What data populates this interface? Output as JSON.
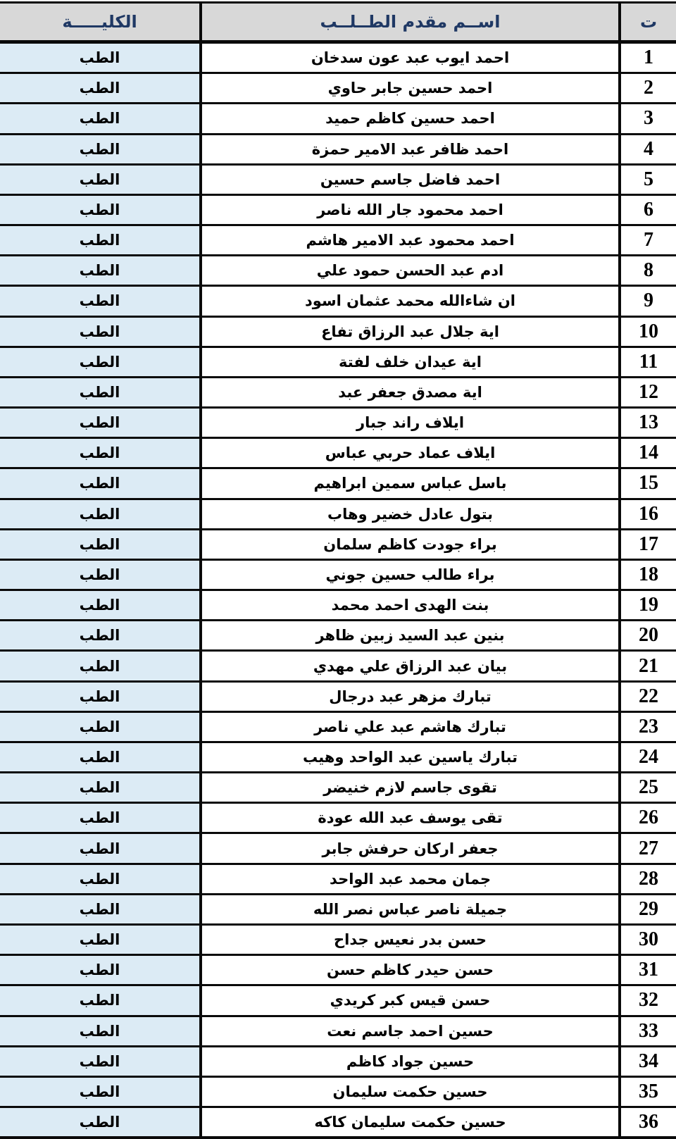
{
  "document_type": "applicants-list-table",
  "colors": {
    "header_background": "#d8d8d8",
    "header_text": "#1f3864",
    "college_cell_background": "#dcebf5",
    "body_text": "#000000",
    "border": "#0a0a0a",
    "name_cell_background": "#ffffff"
  },
  "table": {
    "headers": {
      "index": "ت",
      "name": "اســم مقدم الطــلــب",
      "college": "الكليـــــة"
    },
    "rows": [
      {
        "index": "1",
        "name": "احمد ايوب عبد عون سدخان",
        "college": "الطب"
      },
      {
        "index": "2",
        "name": "احمد حسين جابر حاوي",
        "college": "الطب"
      },
      {
        "index": "3",
        "name": "احمد حسين كاظم حميد",
        "college": "الطب"
      },
      {
        "index": "4",
        "name": "احمد ظافر عبد الامير حمزة",
        "college": "الطب"
      },
      {
        "index": "5",
        "name": "احمد فاضل جاسم حسين",
        "college": "الطب"
      },
      {
        "index": "6",
        "name": "احمد محمود جار الله ناصر",
        "college": "الطب"
      },
      {
        "index": "7",
        "name": "احمد محمود عبد الامير هاشم",
        "college": "الطب"
      },
      {
        "index": "8",
        "name": "ادم عبد الحسن حمود علي",
        "college": "الطب"
      },
      {
        "index": "9",
        "name": "ان شاءالله محمد عثمان اسود",
        "college": "الطب"
      },
      {
        "index": "10",
        "name": "اية جلال عبد الرزاق تفاع",
        "college": "الطب"
      },
      {
        "index": "11",
        "name": "اية عيدان خلف لفتة",
        "college": "الطب"
      },
      {
        "index": "12",
        "name": "اية مصدق جعفر عبد",
        "college": "الطب"
      },
      {
        "index": "13",
        "name": "ايلاف راند جبار",
        "college": "الطب"
      },
      {
        "index": "14",
        "name": "ايلاف عماد حربي عباس",
        "college": "الطب"
      },
      {
        "index": "15",
        "name": "باسل عباس سمين ابراهيم",
        "college": "الطب"
      },
      {
        "index": "16",
        "name": "بتول عادل خضير وهاب",
        "college": "الطب"
      },
      {
        "index": "17",
        "name": "براء جودت كاظم سلمان",
        "college": "الطب"
      },
      {
        "index": "18",
        "name": "براء طالب حسين جوني",
        "college": "الطب"
      },
      {
        "index": "19",
        "name": "بنت الهدى احمد محمد",
        "college": "الطب"
      },
      {
        "index": "20",
        "name": "بنين عبد السيد زبين ظاهر",
        "college": "الطب"
      },
      {
        "index": "21",
        "name": "بيان عبد الرزاق علي مهدي",
        "college": "الطب"
      },
      {
        "index": "22",
        "name": "تبارك مزهر عبد درجال",
        "college": "الطب"
      },
      {
        "index": "23",
        "name": "تبارك هاشم عبد علي ناصر",
        "college": "الطب"
      },
      {
        "index": "24",
        "name": "تبارك ياسين عبد الواحد وهيب",
        "college": "الطب"
      },
      {
        "index": "25",
        "name": "تقوى جاسم لازم خنيضر",
        "college": "الطب"
      },
      {
        "index": "26",
        "name": "تقى يوسف عبد الله عودة",
        "college": "الطب"
      },
      {
        "index": "27",
        "name": "جعفر اركان حرفش جابر",
        "college": "الطب"
      },
      {
        "index": "28",
        "name": "جمان محمد عبد الواحد",
        "college": "الطب"
      },
      {
        "index": "29",
        "name": "جميلة ناصر عباس نصر الله",
        "college": "الطب"
      },
      {
        "index": "30",
        "name": "حسن بدر نعيس جداح",
        "college": "الطب"
      },
      {
        "index": "31",
        "name": "حسن حيدر كاظم حسن",
        "college": "الطب"
      },
      {
        "index": "32",
        "name": "حسن قيس كبر كريدي",
        "college": "الطب"
      },
      {
        "index": "33",
        "name": "حسين احمد جاسم نعت",
        "college": "الطب"
      },
      {
        "index": "34",
        "name": "حسين جواد كاظم",
        "college": "الطب"
      },
      {
        "index": "35",
        "name": "حسين حكمت سليمان",
        "college": "الطب"
      },
      {
        "index": "36",
        "name": "حسين حكمت سليمان كاكه",
        "college": "الطب"
      }
    ]
  }
}
